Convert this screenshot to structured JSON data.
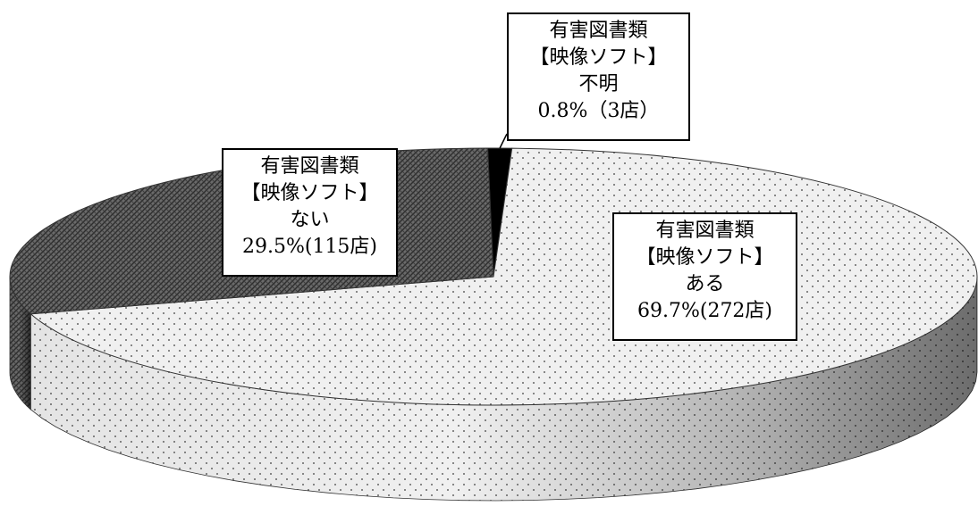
{
  "chart_data": {
    "type": "pie",
    "style": "3d",
    "slices": [
      {
        "category": "有害図書類",
        "sub": "【映像ソフト】",
        "label": "ある",
        "percent": 69.7,
        "count": 272,
        "value_text": "69.7%(272店)",
        "fill": "#f0f0f0",
        "pattern": "dots"
      },
      {
        "category": "有害図書類",
        "sub": "【映像ソフト】",
        "label": "ない",
        "percent": 29.5,
        "count": 115,
        "value_text": "29.5%(115店)",
        "fill": "#555555",
        "pattern": "hatch"
      },
      {
        "category": "有害図書類",
        "sub": "【映像ソフト】",
        "label": "不明",
        "percent": 0.8,
        "count": 3,
        "value_text": "0.8%（3店）",
        "fill": "#000000",
        "pattern": "solid"
      }
    ]
  }
}
